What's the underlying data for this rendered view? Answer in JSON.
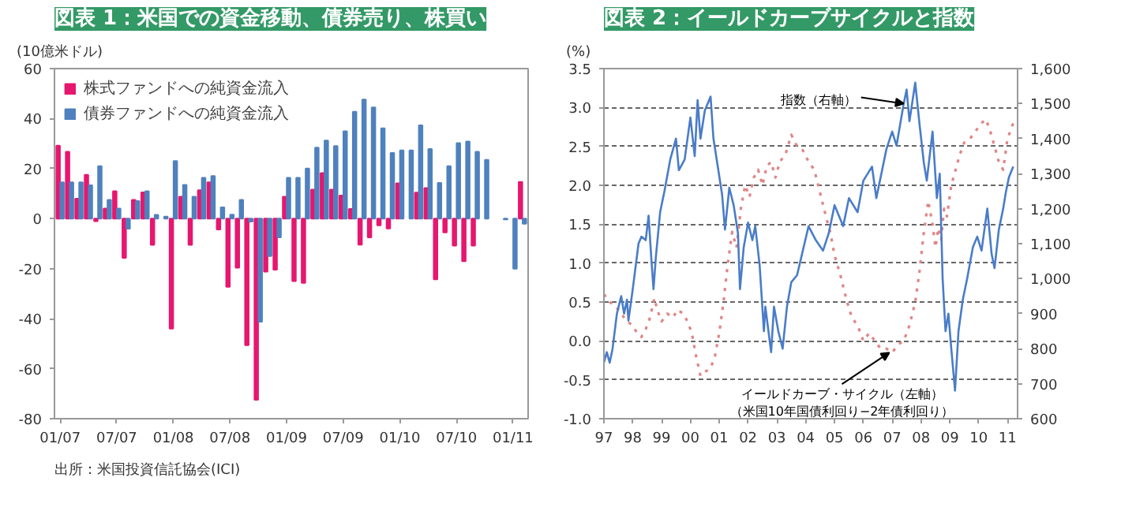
{
  "chart_data": [
    {
      "type": "bar",
      "title": "図表 1：米国での資金移動、債券売り、株買い",
      "ylabel": "(10億米ドル)",
      "categories": [
        "01/07",
        null,
        null,
        null,
        null,
        null,
        "07/07",
        null,
        null,
        null,
        null,
        null,
        "01/08",
        null,
        null,
        null,
        null,
        null,
        "07/08",
        null,
        null,
        null,
        null,
        null,
        "01/09",
        null,
        null,
        null,
        null,
        null,
        "07/09",
        null,
        null,
        null,
        null,
        null,
        "01/10",
        null,
        null,
        null,
        null,
        null,
        "07/10",
        null,
        null,
        null,
        null,
        null,
        "01/11",
        null
      ],
      "series": [
        {
          "name": "株式ファンドへの純資金流入",
          "color": "#e6176f",
          "values": [
            29.2,
            26.7,
            8,
            17.5,
            -1,
            4,
            11,
            -15.7,
            7.5,
            10.5,
            -10.5,
            null,
            -44,
            8.8,
            -10.5,
            11.4,
            14.5,
            -4.3,
            -27.3,
            -19.6,
            -50.6,
            -72.4,
            -21.2,
            -20.4,
            8.8,
            -25,
            -25.7,
            11.6,
            18.2,
            11.6,
            9.2,
            3.9,
            -10.4,
            -7.5,
            -2.7,
            -3.9,
            14.1,
            null,
            10.4,
            12.2,
            -24.3,
            -5.5,
            -10.8,
            -17,
            -10.8,
            null,
            null,
            null,
            null,
            14.7
          ]
        },
        {
          "name": "債券ファンドへの純資金流入",
          "color": "#4f81bd",
          "values": [
            14.5,
            14.5,
            14.5,
            13.3,
            21,
            7.5,
            4,
            -4,
            7,
            11,
            1.5,
            0.8,
            23,
            13.5,
            8.8,
            16.3,
            17,
            4.5,
            1.6,
            7.5,
            -1.2,
            -41.2,
            -15,
            -7.5,
            16.3,
            16.3,
            20,
            28.4,
            31.2,
            29,
            34.9,
            42.7,
            47.6,
            44.5,
            36.1,
            26.3,
            27.3,
            27.3,
            37.3,
            27.8,
            14.3,
            21,
            30.2,
            30.8,
            26.7,
            23.5,
            null,
            -0.3,
            -20,
            -2
          ]
        }
      ],
      "ylim": [
        -80,
        60
      ],
      "yticks": [
        -80,
        -60,
        -40,
        -20,
        0,
        20,
        40,
        60
      ],
      "legend": "top left",
      "annotations": [
        "出所：米国投資信託協会(ICI)"
      ]
    },
    {
      "type": "line",
      "title": "図表 2：イールドカーブサイクルと指数",
      "ylabel": "(%)",
      "xlim": [
        1997,
        2011.35
      ],
      "xticks": [
        {
          "value": 1997,
          "label": "97"
        },
        {
          "value": 1998,
          "label": "98"
        },
        {
          "value": 1999,
          "label": "99"
        },
        {
          "value": 2000,
          "label": "00"
        },
        {
          "value": 2001,
          "label": "01"
        },
        {
          "value": 2002,
          "label": "02"
        },
        {
          "value": 2003,
          "label": "03"
        },
        {
          "value": 2004,
          "label": "04"
        },
        {
          "value": 2005,
          "label": "05"
        },
        {
          "value": 2006,
          "label": "06"
        },
        {
          "value": 2007,
          "label": "07"
        },
        {
          "value": 2008,
          "label": "08"
        },
        {
          "value": 2009,
          "label": "09"
        },
        {
          "value": 2010,
          "label": "10"
        },
        {
          "value": 2011,
          "label": "11"
        }
      ],
      "ylim": [
        -1,
        3.5
      ],
      "yticks": [
        {
          "value": -1,
          "label": "-1.0"
        },
        -0.5,
        {
          "value": 0,
          "label": "0.0"
        },
        0.5,
        {
          "value": 1,
          "label": "1.0"
        },
        1.5,
        {
          "value": 2,
          "label": "2.0"
        },
        2.5,
        {
          "value": 3,
          "label": "3.0"
        },
        3.5
      ],
      "y2lim": [
        600,
        1600
      ],
      "y2ticks": [
        600,
        700,
        800,
        900,
        {
          "value": 1000,
          "label": "1,000"
        },
        {
          "value": 1100,
          "label": "1,100"
        },
        {
          "value": 1200,
          "label": "1,200"
        },
        {
          "value": 1300,
          "label": "1,300"
        },
        {
          "value": 1400,
          "label": "1,400"
        },
        {
          "value": 1500,
          "label": "1,500"
        },
        {
          "value": 1600,
          "label": "1,600"
        }
      ],
      "grid": "y",
      "series": [
        {
          "color": "#e08585",
          "line_style": "dotted",
          "x": [
            1997.0,
            1997.2,
            1997.4,
            1997.6,
            1997.8,
            1998.0,
            1998.15,
            1998.3,
            1998.45,
            1998.6,
            1998.75,
            1998.85,
            1999.0,
            1999.2,
            1999.4,
            1999.55,
            1999.75,
            1999.9,
            2000.05,
            2000.2,
            2000.35,
            2000.5,
            2000.7,
            2000.85,
            2001.0,
            2001.15,
            2001.3,
            2001.45,
            2001.6,
            2001.75,
            2001.9,
            2002.05,
            2002.2,
            2002.35,
            2002.5,
            2002.65,
            2002.8,
            2002.95,
            2003.1,
            2003.3,
            2003.5,
            2003.7,
            2003.9,
            2004.1,
            2004.3,
            2004.5,
            2004.7,
            2004.85,
            2005.0,
            2005.2,
            2005.4,
            2005.6,
            2005.8,
            2006.0,
            2006.2,
            2006.4,
            2006.6,
            2006.8,
            2007.0,
            2007.2,
            2007.4,
            2007.6,
            2007.8,
            2007.95,
            2008.1,
            2008.25,
            2008.4,
            2008.5,
            2008.6,
            2008.7,
            2008.8,
            2008.9,
            2009.05,
            2009.2,
            2009.35,
            2009.5,
            2009.7,
            2009.9,
            2010.1,
            2010.25,
            2010.4,
            2010.55,
            2010.7,
            2010.85,
            2011.0,
            2011.2
          ],
          "values": [
            0.6,
            0.5,
            0.45,
            0.35,
            0.25,
            0.2,
            0.1,
            0.05,
            0.15,
            0.3,
            0.55,
            0.4,
            0.25,
            0.35,
            0.3,
            0.4,
            0.35,
            0.25,
            0.1,
            -0.2,
            -0.45,
            -0.4,
            -0.35,
            -0.2,
            0.1,
            0.5,
            1.0,
            1.4,
            1.2,
            1.7,
            2.0,
            1.85,
            2.1,
            2.2,
            2.0,
            2.25,
            2.3,
            2.1,
            2.3,
            2.4,
            2.65,
            2.5,
            2.45,
            2.3,
            2.2,
            1.9,
            1.6,
            1.4,
            1.1,
            0.85,
            0.55,
            0.3,
            0.2,
            0.0,
            0.1,
            0.0,
            -0.1,
            -0.1,
            -0.15,
            -0.05,
            0.0,
            0.2,
            0.5,
            0.9,
            1.4,
            1.8,
            1.5,
            1.2,
            1.45,
            1.3,
            1.7,
            1.6,
            2.0,
            2.2,
            2.4,
            2.55,
            2.6,
            2.7,
            2.8,
            2.85,
            2.7,
            2.5,
            2.3,
            2.2,
            2.6,
            2.8
          ]
        },
        {
          "color": "#4a7cc9",
          "line_style": "solid",
          "axis": "y2",
          "x": [
            1997.0,
            1997.1,
            1997.2,
            1997.3,
            1997.45,
            1997.6,
            1997.7,
            1997.8,
            1997.85,
            1998.0,
            1998.2,
            1998.3,
            1998.45,
            1998.55,
            1998.65,
            1998.72,
            1998.8,
            1998.95,
            1999.1,
            1999.3,
            1999.5,
            1999.6,
            1999.8,
            2000.0,
            2000.15,
            2000.25,
            2000.35,
            2000.5,
            2000.7,
            2000.8,
            2000.95,
            2001.1,
            2001.2,
            2001.35,
            2001.5,
            2001.65,
            2001.72,
            2001.85,
            2002.0,
            2002.15,
            2002.25,
            2002.4,
            2002.55,
            2002.6,
            2002.8,
            2002.9,
            2003.05,
            2003.2,
            2003.35,
            2003.5,
            2003.7,
            2003.9,
            2004.1,
            2004.35,
            2004.6,
            2004.8,
            2005.0,
            2005.3,
            2005.5,
            2005.8,
            2006.0,
            2006.3,
            2006.45,
            2006.8,
            2007.0,
            2007.15,
            2007.4,
            2007.5,
            2007.6,
            2007.8,
            2007.95,
            2008.1,
            2008.2,
            2008.4,
            2008.55,
            2008.65,
            2008.75,
            2008.85,
            2008.95,
            2009.05,
            2009.18,
            2009.3,
            2009.45,
            2009.6,
            2009.8,
            2009.95,
            2010.1,
            2010.3,
            2010.45,
            2010.55,
            2010.7,
            2010.85,
            2010.95,
            2011.05,
            2011.2
          ],
          "values": [
            760,
            790,
            760,
            800,
            900,
            950,
            900,
            940,
            880,
            970,
            1100,
            1120,
            1110,
            1180,
            1050,
            970,
            1060,
            1190,
            1250,
            1340,
            1400,
            1310,
            1340,
            1460,
            1350,
            1510,
            1400,
            1480,
            1520,
            1400,
            1320,
            1240,
            1140,
            1260,
            1210,
            1130,
            970,
            1090,
            1160,
            1110,
            1150,
            1040,
            850,
            920,
            790,
            920,
            850,
            800,
            920,
            990,
            1010,
            1080,
            1150,
            1110,
            1080,
            1130,
            1210,
            1150,
            1230,
            1190,
            1280,
            1320,
            1230,
            1370,
            1420,
            1380,
            1500,
            1540,
            1450,
            1560,
            1440,
            1330,
            1280,
            1420,
            1230,
            1300,
            1000,
            850,
            900,
            800,
            680,
            850,
            940,
            1000,
            1090,
            1120,
            1080,
            1200,
            1070,
            1030,
            1140,
            1200,
            1250,
            1290,
            1320
          ]
        }
      ],
      "annotations": [
        {
          "text": "指数（右軸）",
          "x": 2007.4,
          "y": 3.05
        },
        {
          "text": "イールドカーブ・サイクル（左軸）",
          "x": 2006.9,
          "y": -0.15
        },
        "（米国10年国債利回り−2年債利回り）"
      ]
    }
  ]
}
